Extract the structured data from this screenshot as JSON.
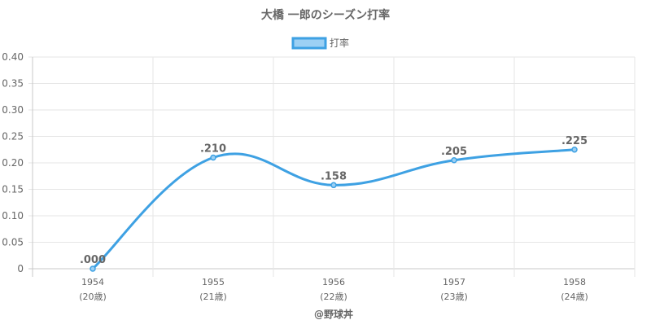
{
  "chart_data": {
    "type": "line",
    "title": "大橋 一郎のシーズン打率",
    "legend": {
      "label": "打率",
      "position": "top",
      "color": "#3ea1e3",
      "fill": "#9cd0f4"
    },
    "categories": [
      "1954",
      "1955",
      "1956",
      "1957",
      "1958"
    ],
    "category_sublabels": [
      "(20歳)",
      "(21歳)",
      "(22歳)",
      "(23歳)",
      "(24歳)"
    ],
    "series": [
      {
        "name": "打率",
        "values": [
          0.0,
          0.21,
          0.158,
          0.205,
          0.225
        ],
        "labels": [
          ".000",
          ".210",
          ".158",
          ".205",
          ".225"
        ]
      }
    ],
    "ylim": [
      0,
      0.4
    ],
    "yticks": [
      "0",
      "0.05",
      "0.10",
      "0.15",
      "0.20",
      "0.25",
      "0.30",
      "0.35",
      "0.40"
    ],
    "grid": true,
    "credit": "@野球丼",
    "colors": {
      "line": "#3ea1e3",
      "grid": "#e6e6e6",
      "axis": "#c8c8c8",
      "text": "#666666"
    }
  }
}
